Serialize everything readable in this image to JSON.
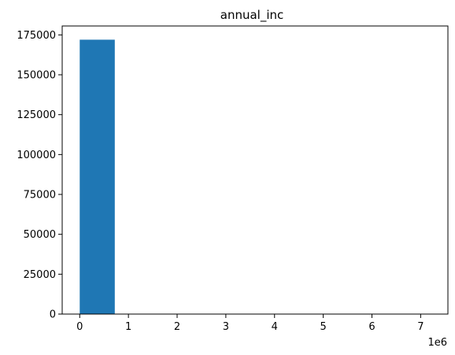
{
  "chart_data": {
    "type": "bar",
    "title": "annual_inc",
    "xlabel": "",
    "ylabel": "",
    "x_offset_label": "1e6",
    "x_ticks": [
      0,
      1,
      2,
      3,
      4,
      5,
      6,
      7
    ],
    "y_ticks": [
      0,
      25000,
      50000,
      75000,
      100000,
      125000,
      150000,
      175000
    ],
    "xlim": [
      -0.36,
      7.56
    ],
    "ylim": [
      0,
      180600
    ],
    "bins": [
      {
        "start": 0.0,
        "end": 0.72,
        "count": 172000
      },
      {
        "start": 0.72,
        "end": 1.44,
        "count": 0
      },
      {
        "start": 1.44,
        "end": 2.16,
        "count": 0
      },
      {
        "start": 2.16,
        "end": 2.88,
        "count": 0
      },
      {
        "start": 2.88,
        "end": 3.6,
        "count": 0
      },
      {
        "start": 3.6,
        "end": 4.32,
        "count": 0
      },
      {
        "start": 4.32,
        "end": 5.04,
        "count": 0
      },
      {
        "start": 5.04,
        "end": 5.76,
        "count": 0
      },
      {
        "start": 5.76,
        "end": 6.48,
        "count": 0
      },
      {
        "start": 6.48,
        "end": 7.2,
        "count": 0
      }
    ],
    "grid": false,
    "bar_color": "#1f77b4"
  }
}
